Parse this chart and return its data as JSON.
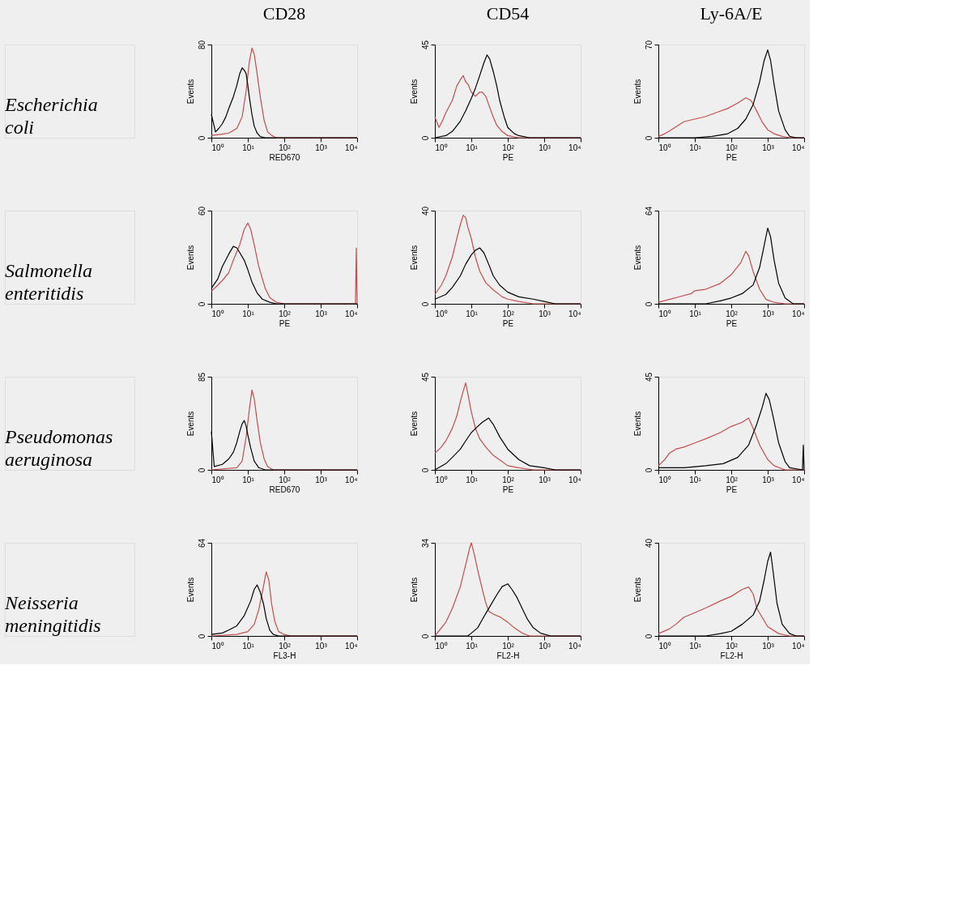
{
  "chart_data": [
    {
      "type": "line",
      "title": "CD28",
      "annotations": [
        "Escherichia coli"
      ],
      "xlabel": "RED670",
      "ylabel": "Events",
      "log": "x",
      "xlim": [
        1,
        10000
      ],
      "xticks": [
        {
          "value": 1,
          "label": "10⁰"
        },
        {
          "value": 10,
          "label": "10¹"
        },
        {
          "value": 100,
          "label": "10²"
        },
        {
          "value": 1000,
          "label": "10³"
        },
        {
          "value": 10000,
          "label": "10⁴"
        }
      ],
      "ylim": [
        0,
        80
      ],
      "yticks": [
        0,
        80
      ],
      "grid": false,
      "legend": false,
      "marker": "none",
      "line_style": "solid",
      "series": [
        {
          "color": "#c0504d",
          "x": [
            1,
            2,
            3,
            5,
            7,
            9,
            11,
            13,
            15,
            18,
            22,
            28,
            35,
            45,
            60,
            10000
          ],
          "values": [
            2,
            3,
            4,
            8,
            18,
            40,
            65,
            77,
            72,
            55,
            35,
            15,
            5,
            2,
            0,
            0
          ]
        },
        {
          "color": "#000000",
          "x": [
            1,
            1.3,
            1.6,
            2,
            2.5,
            3,
            4,
            5,
            6,
            7,
            8,
            9,
            10,
            11,
            13,
            15,
            18,
            22,
            30,
            100,
            10000
          ],
          "values": [
            20,
            5,
            8,
            12,
            18,
            25,
            35,
            45,
            55,
            60,
            58,
            55,
            45,
            35,
            20,
            10,
            4,
            1,
            0,
            0,
            0
          ]
        }
      ]
    },
    {
      "type": "line",
      "title": "CD54",
      "xlabel": "PE",
      "ylabel": "Events",
      "log": "x",
      "xlim": [
        1,
        10000
      ],
      "xticks": [
        {
          "value": 1,
          "label": "10⁰"
        },
        {
          "value": 10,
          "label": "10¹"
        },
        {
          "value": 100,
          "label": "10²"
        },
        {
          "value": 1000,
          "label": "10³"
        },
        {
          "value": 10000,
          "label": "10⁴"
        }
      ],
      "ylim": [
        0,
        45
      ],
      "yticks": [
        0,
        45
      ],
      "grid": false,
      "legend": false,
      "marker": "none",
      "line_style": "solid",
      "series": [
        {
          "color": "#c0504d",
          "x": [
            1,
            1.3,
            1.6,
            2,
            3,
            4,
            5,
            6,
            7,
            8,
            10,
            13,
            17,
            20,
            25,
            30,
            40,
            50,
            70,
            100,
            200,
            10000
          ],
          "values": [
            10,
            5,
            8,
            12,
            18,
            25,
            28,
            30,
            27,
            26,
            22,
            20,
            22,
            22,
            20,
            16,
            10,
            6,
            3,
            1,
            0,
            0
          ]
        },
        {
          "color": "#000000",
          "x": [
            1,
            2,
            3,
            5,
            7,
            10,
            13,
            17,
            22,
            27,
            32,
            40,
            50,
            60,
            80,
            100,
            150,
            200,
            400,
            10000
          ],
          "values": [
            0,
            1,
            3,
            8,
            13,
            19,
            24,
            30,
            36,
            40,
            38,
            32,
            25,
            18,
            10,
            5,
            2,
            1,
            0,
            0
          ]
        }
      ]
    },
    {
      "type": "line",
      "title": "Ly-6A/E",
      "xlabel": "PE",
      "ylabel": "Events",
      "log": "x",
      "xlim": [
        1,
        10000
      ],
      "xticks": [
        {
          "value": 1,
          "label": "10⁰"
        },
        {
          "value": 10,
          "label": "10¹"
        },
        {
          "value": 100,
          "label": "10²"
        },
        {
          "value": 1000,
          "label": "10³"
        },
        {
          "value": 10000,
          "label": "10⁴"
        }
      ],
      "ylim": [
        0,
        70
      ],
      "yticks": [
        0,
        70
      ],
      "grid": false,
      "legend": false,
      "marker": "none",
      "line_style": "solid",
      "series": [
        {
          "color": "#c0504d",
          "x": [
            1,
            1.5,
            2,
            3,
            5,
            10,
            20,
            40,
            80,
            150,
            250,
            350,
            500,
            700,
            1000,
            1500,
            2500,
            4000,
            10000
          ],
          "values": [
            1,
            3,
            5,
            8,
            12,
            14,
            16,
            19,
            22,
            26,
            30,
            28,
            20,
            12,
            6,
            3,
            1,
            0,
            0
          ]
        },
        {
          "color": "#000000",
          "x": [
            1,
            10,
            30,
            80,
            150,
            250,
            400,
            600,
            800,
            1000,
            1200,
            1500,
            2000,
            3000,
            4000,
            6000,
            10000
          ],
          "values": [
            0,
            0,
            1,
            3,
            7,
            14,
            25,
            42,
            58,
            66,
            58,
            40,
            20,
            6,
            1,
            0,
            0
          ]
        }
      ]
    },
    {
      "type": "line",
      "annotations": [
        "Salmonella enteritidis"
      ],
      "xlabel": "PE",
      "ylabel": "Events",
      "log": "x",
      "xlim": [
        1,
        10000
      ],
      "xticks": [
        {
          "value": 1,
          "label": "10⁰"
        },
        {
          "value": 10,
          "label": "10¹"
        },
        {
          "value": 100,
          "label": "10²"
        },
        {
          "value": 1000,
          "label": "10³"
        },
        {
          "value": 10000,
          "label": "10⁴"
        }
      ],
      "ylim": [
        0,
        60
      ],
      "yticks": [
        0,
        60
      ],
      "grid": false,
      "legend": false,
      "marker": "none",
      "line_style": "solid",
      "series": [
        {
          "color": "#c0504d",
          "x": [
            1,
            1.5,
            2,
            3,
            4,
            6,
            8,
            10,
            12,
            15,
            20,
            30,
            40,
            60,
            100,
            9000,
            9500,
            10000
          ],
          "values": [
            8,
            12,
            15,
            20,
            28,
            38,
            48,
            52,
            48,
            38,
            24,
            10,
            4,
            1,
            0,
            0,
            36,
            0
          ]
        },
        {
          "color": "#000000",
          "x": [
            1,
            1.5,
            2,
            3,
            4,
            5,
            6,
            8,
            10,
            13,
            18,
            25,
            40,
            60,
            10000
          ],
          "values": [
            10,
            16,
            24,
            32,
            37,
            36,
            33,
            28,
            22,
            14,
            7,
            3,
            1,
            0,
            0
          ]
        }
      ]
    },
    {
      "type": "line",
      "xlabel": "PE",
      "ylabel": "Events",
      "log": "x",
      "xlim": [
        1,
        10000
      ],
      "xticks": [
        {
          "value": 1,
          "label": "10⁰"
        },
        {
          "value": 10,
          "label": "10¹"
        },
        {
          "value": 100,
          "label": "10²"
        },
        {
          "value": 1000,
          "label": "10³"
        },
        {
          "value": 10000,
          "label": "10⁴"
        }
      ],
      "ylim": [
        0,
        40
      ],
      "yticks": [
        0,
        40
      ],
      "grid": false,
      "legend": false,
      "marker": "none",
      "line_style": "solid",
      "series": [
        {
          "color": "#c0504d",
          "x": [
            1,
            1.5,
            2,
            3,
            4,
            5,
            6,
            7,
            8,
            10,
            13,
            17,
            25,
            40,
            70,
            100,
            200,
            500,
            10000
          ],
          "values": [
            4,
            8,
            12,
            20,
            28,
            34,
            38,
            37,
            33,
            28,
            20,
            14,
            9,
            6,
            3,
            2,
            1,
            0,
            0
          ]
        },
        {
          "color": "#000000",
          "x": [
            1,
            2,
            3,
            5,
            7,
            10,
            13,
            17,
            22,
            30,
            40,
            60,
            100,
            200,
            500,
            1000,
            2000,
            10000
          ],
          "values": [
            2,
            4,
            7,
            12,
            17,
            21,
            23,
            24,
            22,
            17,
            12,
            8,
            5,
            3,
            2,
            1,
            0,
            0
          ]
        }
      ]
    },
    {
      "type": "line",
      "xlabel": "PE",
      "ylabel": "Events",
      "log": "x",
      "xlim": [
        1,
        10000
      ],
      "xticks": [
        {
          "value": 1,
          "label": "10⁰"
        },
        {
          "value": 10,
          "label": "10¹"
        },
        {
          "value": 100,
          "label": "10²"
        },
        {
          "value": 1000,
          "label": "10³"
        },
        {
          "value": 10000,
          "label": "10⁴"
        }
      ],
      "ylim": [
        0,
        64
      ],
      "yticks": [
        0,
        64
      ],
      "grid": false,
      "legend": false,
      "marker": "none",
      "line_style": "solid",
      "series": [
        {
          "color": "#c0504d",
          "x": [
            1,
            2,
            4,
            8,
            10,
            20,
            50,
            100,
            180,
            250,
            300,
            400,
            600,
            900,
            1500,
            3000,
            10000
          ],
          "values": [
            1,
            3,
            5,
            7,
            9,
            10,
            14,
            20,
            28,
            36,
            33,
            22,
            10,
            3,
            1,
            0,
            0
          ]
        },
        {
          "color": "#000000",
          "x": [
            1,
            20,
            50,
            100,
            200,
            400,
            600,
            800,
            1000,
            1200,
            1500,
            2000,
            3000,
            5000,
            10000
          ],
          "values": [
            0,
            0,
            2,
            4,
            7,
            13,
            25,
            40,
            52,
            46,
            30,
            14,
            4,
            0,
            0
          ]
        }
      ]
    },
    {
      "type": "line",
      "annotations": [
        "Pseudomonas aeruginosa"
      ],
      "xlabel": "RED670",
      "ylabel": "Events",
      "log": "x",
      "xlim": [
        1,
        10000
      ],
      "xticks": [
        {
          "value": 1,
          "label": "10⁰"
        },
        {
          "value": 10,
          "label": "10¹"
        },
        {
          "value": 100,
          "label": "10²"
        },
        {
          "value": 1000,
          "label": "10³"
        },
        {
          "value": 10000,
          "label": "10⁴"
        }
      ],
      "ylim": [
        0,
        85
      ],
      "yticks": [
        0,
        85
      ],
      "grid": false,
      "legend": false,
      "marker": "none",
      "line_style": "solid",
      "series": [
        {
          "color": "#c0504d",
          "x": [
            1,
            5,
            7,
            9,
            11,
            13,
            15,
            18,
            22,
            28,
            35,
            50,
            10000
          ],
          "values": [
            0,
            2,
            8,
            30,
            55,
            73,
            65,
            45,
            25,
            10,
            3,
            0,
            0
          ]
        },
        {
          "color": "#000000",
          "x": [
            1,
            1.2,
            2,
            3,
            4,
            5,
            6,
            7,
            8,
            9,
            10,
            12,
            15,
            20,
            30,
            10000
          ],
          "values": [
            35,
            3,
            5,
            10,
            16,
            25,
            35,
            42,
            45,
            40,
            32,
            20,
            8,
            2,
            0,
            0
          ]
        }
      ]
    },
    {
      "type": "line",
      "xlabel": "PE",
      "ylabel": "Events",
      "log": "x",
      "xlim": [
        1,
        10000
      ],
      "xticks": [
        {
          "value": 1,
          "label": "10⁰"
        },
        {
          "value": 10,
          "label": "10¹"
        },
        {
          "value": 100,
          "label": "10²"
        },
        {
          "value": 1000,
          "label": "10³"
        },
        {
          "value": 10000,
          "label": "10⁴"
        }
      ],
      "ylim": [
        0,
        45
      ],
      "yticks": [
        0,
        45
      ],
      "grid": false,
      "legend": false,
      "marker": "none",
      "line_style": "solid",
      "series": [
        {
          "color": "#c0504d",
          "x": [
            1,
            1.5,
            2,
            3,
            4,
            5,
            6,
            7,
            8,
            10,
            13,
            17,
            25,
            40,
            70,
            100,
            200,
            500,
            10000
          ],
          "values": [
            8,
            11,
            14,
            20,
            26,
            33,
            38,
            42,
            37,
            28,
            20,
            15,
            11,
            7,
            4,
            2,
            1,
            0,
            0
          ]
        },
        {
          "color": "#000000",
          "x": [
            1,
            2,
            3,
            5,
            7,
            10,
            15,
            20,
            30,
            40,
            60,
            100,
            200,
            400,
            1000,
            2000,
            10000
          ],
          "values": [
            0,
            3,
            6,
            10,
            14,
            18,
            21,
            23,
            25,
            22,
            16,
            10,
            5,
            2,
            1,
            0,
            0
          ]
        }
      ]
    },
    {
      "type": "line",
      "xlabel": "PE",
      "ylabel": "Events",
      "log": "x",
      "xlim": [
        1,
        10000
      ],
      "xticks": [
        {
          "value": 1,
          "label": "10⁰"
        },
        {
          "value": 10,
          "label": "10¹"
        },
        {
          "value": 100,
          "label": "10²"
        },
        {
          "value": 1000,
          "label": "10³"
        },
        {
          "value": 10000,
          "label": "10⁴"
        }
      ],
      "ylim": [
        0,
        45
      ],
      "yticks": [
        0,
        45
      ],
      "grid": false,
      "legend": false,
      "marker": "none",
      "line_style": "solid",
      "series": [
        {
          "color": "#c0504d",
          "x": [
            1,
            1.5,
            2,
            3,
            5,
            10,
            20,
            50,
            100,
            200,
            300,
            400,
            600,
            1000,
            1500,
            3000,
            10000
          ],
          "values": [
            2,
            5,
            8,
            10,
            11,
            13,
            15,
            18,
            21,
            23,
            25,
            20,
            12,
            5,
            2,
            0,
            0
          ]
        },
        {
          "color": "#000000",
          "x": [
            1,
            5,
            20,
            60,
            150,
            300,
            500,
            700,
            900,
            1100,
            1400,
            2000,
            3000,
            4000,
            9000,
            9500,
            10000
          ],
          "values": [
            1,
            1,
            2,
            3,
            6,
            12,
            22,
            30,
            37,
            34,
            26,
            13,
            4,
            1,
            0,
            12,
            0
          ]
        }
      ]
    },
    {
      "type": "line",
      "annotations": [
        "Neisseria meningitidis"
      ],
      "xlabel": "FL3-H",
      "ylabel": "Events",
      "log": "x",
      "xlim": [
        1,
        10000
      ],
      "xticks": [
        {
          "value": 1,
          "label": "10⁰"
        },
        {
          "value": 10,
          "label": "10¹"
        },
        {
          "value": 100,
          "label": "10²"
        },
        {
          "value": 1000,
          "label": "10³"
        },
        {
          "value": 10000,
          "label": "10⁴"
        }
      ],
      "ylim": [
        0,
        64
      ],
      "yticks": [
        0,
        64
      ],
      "grid": false,
      "legend": false,
      "marker": "none",
      "line_style": "solid",
      "series": [
        {
          "color": "#c0504d",
          "x": [
            1,
            5,
            10,
            15,
            20,
            25,
            32,
            38,
            45,
            55,
            70,
            100,
            150,
            10000
          ],
          "values": [
            0,
            1,
            3,
            8,
            18,
            30,
            44,
            38,
            22,
            10,
            3,
            1,
            0,
            0
          ]
        },
        {
          "color": "#000000",
          "x": [
            1,
            2,
            3,
            5,
            8,
            12,
            15,
            18,
            22,
            27,
            32,
            40,
            50,
            70,
            10000
          ],
          "values": [
            1,
            2,
            4,
            7,
            14,
            24,
            32,
            35,
            30,
            22,
            12,
            4,
            1,
            0,
            0
          ]
        }
      ]
    },
    {
      "type": "line",
      "xlabel": "FL2-H",
      "ylabel": "Events",
      "log": "x",
      "xlim": [
        1,
        10000
      ],
      "xticks": [
        {
          "value": 1,
          "label": "10⁰"
        },
        {
          "value": 10,
          "label": "10¹"
        },
        {
          "value": 100,
          "label": "10²"
        },
        {
          "value": 1000,
          "label": "10³"
        },
        {
          "value": 10000,
          "label": "10⁴"
        }
      ],
      "ylim": [
        0,
        34
      ],
      "yticks": [
        0,
        34
      ],
      "grid": false,
      "legend": false,
      "marker": "none",
      "line_style": "solid",
      "series": [
        {
          "color": "#c0504d",
          "x": [
            1,
            2,
            3,
            5,
            7,
            9,
            10,
            12,
            15,
            20,
            25,
            30,
            40,
            60,
            100,
            150,
            250,
            400,
            10000
          ],
          "values": [
            0,
            5,
            10,
            18,
            26,
            32,
            34,
            30,
            24,
            17,
            12,
            9,
            8,
            7,
            5,
            3,
            1,
            0,
            0
          ]
        },
        {
          "color": "#000000",
          "x": [
            1,
            8,
            10,
            15,
            20,
            30,
            50,
            70,
            100,
            130,
            180,
            250,
            350,
            500,
            800,
            1500,
            10000
          ],
          "values": [
            0,
            0,
            1,
            3,
            6,
            10,
            15,
            18,
            19,
            17,
            14,
            10,
            6,
            3,
            1,
            0,
            0
          ]
        }
      ]
    },
    {
      "type": "line",
      "xlabel": "FL2-H",
      "ylabel": "Events",
      "log": "x",
      "xlim": [
        1,
        10000
      ],
      "xticks": [
        {
          "value": 1,
          "label": "10⁰"
        },
        {
          "value": 10,
          "label": "10¹"
        },
        {
          "value": 100,
          "label": "10²"
        },
        {
          "value": 1000,
          "label": "10³"
        },
        {
          "value": 10000,
          "label": "10⁴"
        }
      ],
      "ylim": [
        0,
        40
      ],
      "yticks": [
        0,
        40
      ],
      "grid": false,
      "legend": false,
      "marker": "none",
      "line_style": "solid",
      "series": [
        {
          "color": "#c0504d",
          "x": [
            1,
            2,
            3,
            5,
            10,
            20,
            50,
            100,
            200,
            300,
            400,
            500,
            700,
            1000,
            2000,
            4000,
            10000
          ],
          "values": [
            1,
            3,
            5,
            8,
            10,
            12,
            15,
            17,
            20,
            21,
            18,
            12,
            8,
            4,
            1,
            0,
            0
          ]
        },
        {
          "color": "#000000",
          "x": [
            1,
            20,
            50,
            100,
            200,
            400,
            600,
            800,
            1000,
            1200,
            1400,
            1800,
            2500,
            4000,
            6000,
            10000
          ],
          "values": [
            0,
            0,
            1,
            2,
            5,
            9,
            15,
            24,
            32,
            36,
            28,
            14,
            5,
            1,
            0,
            0
          ]
        }
      ]
    }
  ]
}
